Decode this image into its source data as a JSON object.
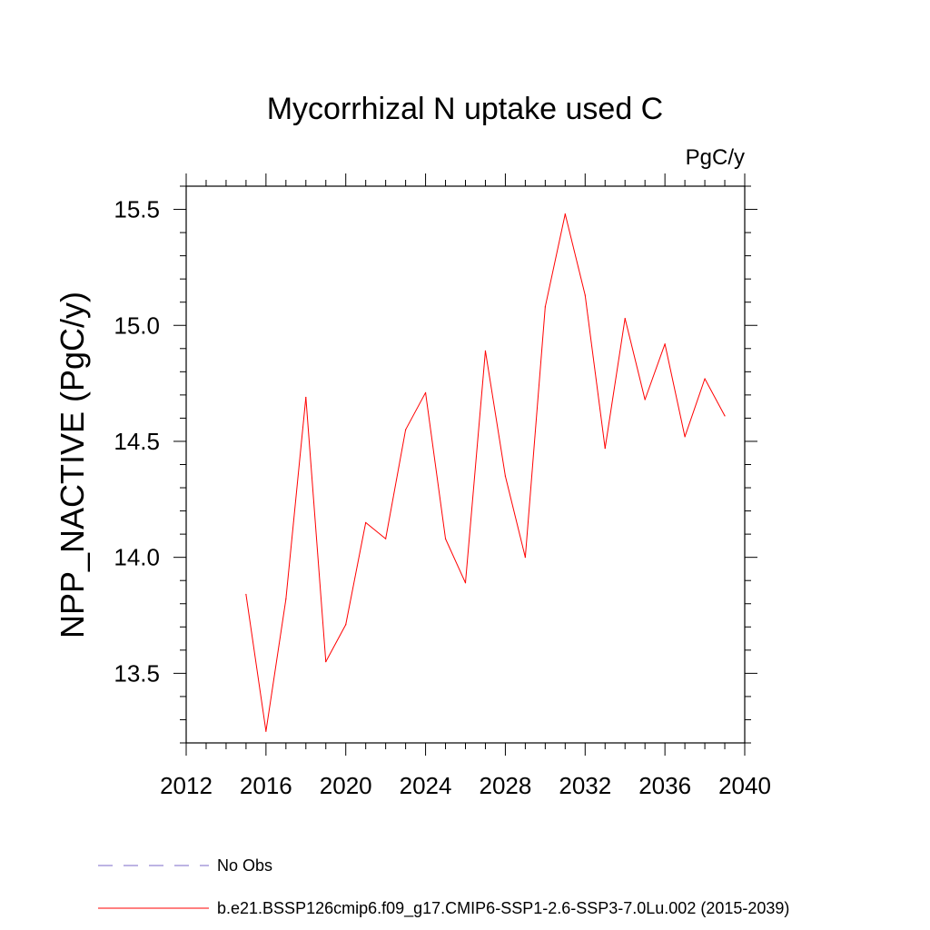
{
  "chart_data": {
    "type": "line",
    "title": "Mycorrhizal N uptake used C",
    "units_label": "PgC/y",
    "ylabel": "NPP_NACTIVE  (PgC/y)",
    "xlabel": "",
    "xlim": [
      2012,
      2040
    ],
    "ylim": [
      13.2,
      15.6
    ],
    "x_ticks": [
      2012,
      2016,
      2020,
      2024,
      2028,
      2032,
      2036,
      2040
    ],
    "y_ticks": [
      13.5,
      14.0,
      14.5,
      15.0,
      15.5
    ],
    "x_tick_labels": [
      "2012",
      "2016",
      "2020",
      "2024",
      "2028",
      "2032",
      "2036",
      "2040"
    ],
    "y_tick_labels": [
      "13.5",
      "14.0",
      "14.5",
      "15.0",
      "15.5"
    ],
    "series": [
      {
        "name": "b.e21.BSSP126cmip6.f09_g17.CMIP6-SSP1-2.6-SSP3-7.0Lu.002 (2015-2039)",
        "color": "#ff0000",
        "x": [
          2015,
          2016,
          2017,
          2018,
          2019,
          2020,
          2021,
          2022,
          2023,
          2024,
          2025,
          2026,
          2027,
          2028,
          2029,
          2030,
          2031,
          2032,
          2033,
          2034,
          2035,
          2036,
          2037,
          2038,
          2039
        ],
        "values": [
          13.84,
          13.25,
          13.82,
          14.69,
          13.55,
          13.71,
          14.15,
          14.08,
          14.55,
          14.71,
          14.08,
          13.89,
          14.89,
          14.35,
          14.0,
          15.08,
          15.48,
          15.13,
          14.47,
          15.03,
          14.68,
          14.92,
          14.52,
          14.77,
          14.61
        ]
      }
    ],
    "legend": [
      {
        "label": "No Obs",
        "color": "#7b68c8",
        "style": "dashed"
      },
      {
        "label": "b.e21.BSSP126cmip6.f09_g17.CMIP6-SSP1-2.6-SSP3-7.0Lu.002 (2015-2039)",
        "color": "#ff0000",
        "style": "solid"
      }
    ]
  }
}
